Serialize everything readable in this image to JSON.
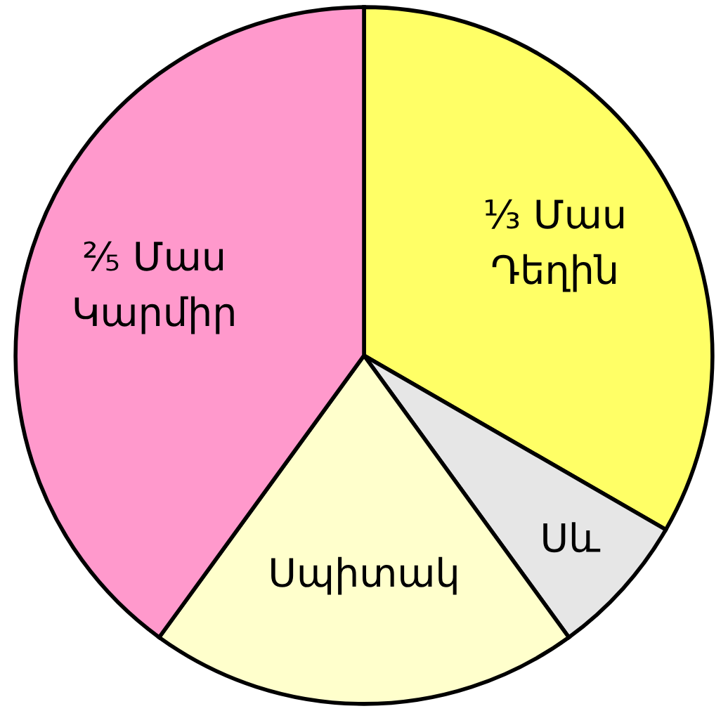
{
  "chart_data": {
    "type": "pie",
    "categories": [
      "Դեղին",
      "Սև",
      "Սպիտակ",
      "Կարմիր"
    ],
    "values": [
      33.33,
      6.67,
      20,
      40
    ],
    "value_labels": [
      "⅓ Մաս",
      null,
      null,
      "⅖ Մաս"
    ],
    "colors": [
      "#ffff66",
      "#e6e6e6",
      "#ffffcc",
      "#ff99cc"
    ],
    "legend": false
  }
}
